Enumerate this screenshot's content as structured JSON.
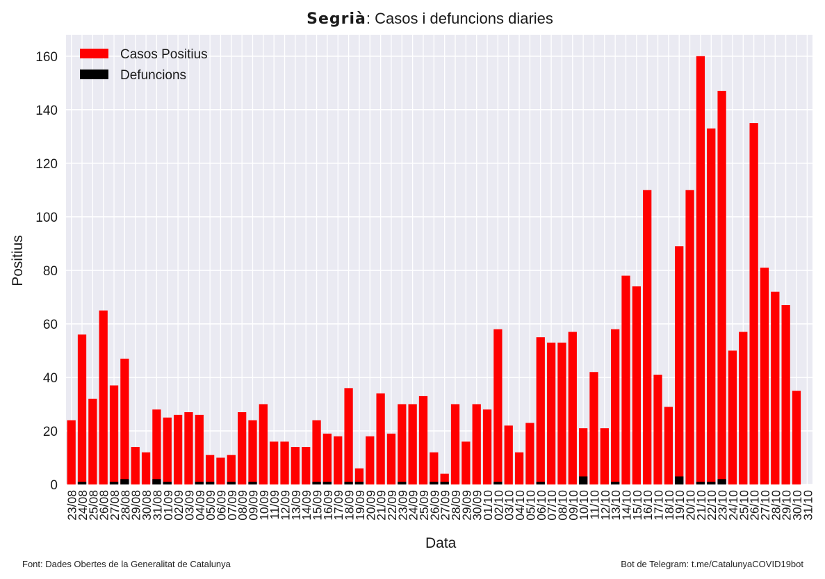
{
  "title_region": "Segrià",
  "title_rest": ": Casos i defuncions diaries",
  "footer_left": "Font: Dades Obertes de la Generalitat de Catalunya",
  "footer_right": "Bot de Telegram: t.me/CatalunyaCOVID19bot",
  "colors": {
    "cases": "#ff0000",
    "deaths": "#000000",
    "plot_bg": "#eaeaf2",
    "grid": "#ffffff"
  },
  "chart_data": {
    "type": "bar",
    "xlabel": "Data",
    "ylabel": "Positius",
    "ylim": [
      0,
      168
    ],
    "yticks": [
      0,
      20,
      40,
      60,
      80,
      100,
      120,
      140,
      160
    ],
    "grid": true,
    "legend_position": "top-left",
    "categories": [
      "23/08",
      "24/08",
      "25/08",
      "26/08",
      "27/08",
      "28/08",
      "29/08",
      "30/08",
      "31/08",
      "01/09",
      "02/09",
      "03/09",
      "04/09",
      "05/09",
      "06/09",
      "07/09",
      "08/09",
      "09/09",
      "10/09",
      "11/09",
      "12/09",
      "13/09",
      "14/09",
      "15/09",
      "16/09",
      "17/09",
      "18/09",
      "19/09",
      "20/09",
      "21/09",
      "22/09",
      "23/09",
      "24/09",
      "25/09",
      "26/09",
      "27/09",
      "28/09",
      "29/09",
      "30/09",
      "01/10",
      "02/10",
      "03/10",
      "04/10",
      "05/10",
      "06/10",
      "07/10",
      "08/10",
      "09/10",
      "10/10",
      "11/10",
      "12/10",
      "13/10",
      "14/10",
      "15/10",
      "16/10",
      "17/10",
      "18/10",
      "19/10",
      "20/10",
      "21/10",
      "22/10",
      "23/10",
      "24/10",
      "25/10",
      "26/10",
      "27/10",
      "28/10",
      "29/10",
      "30/10",
      "31/10"
    ],
    "series": [
      {
        "name": "Casos Positius",
        "values": [
          24,
          56,
          32,
          65,
          37,
          47,
          14,
          12,
          28,
          25,
          26,
          27,
          26,
          11,
          10,
          11,
          27,
          24,
          30,
          16,
          16,
          14,
          14,
          24,
          19,
          18,
          36,
          6,
          18,
          34,
          19,
          30,
          30,
          33,
          12,
          4,
          30,
          16,
          30,
          28,
          58,
          22,
          12,
          23,
          55,
          53,
          53,
          57,
          21,
          42,
          21,
          58,
          78,
          74,
          110,
          41,
          29,
          89,
          110,
          160,
          133,
          147,
          50,
          57,
          135,
          81,
          72,
          67,
          35,
          0
        ]
      },
      {
        "name": "Defuncions",
        "values": [
          0,
          1,
          0,
          0,
          1,
          2,
          0,
          0,
          2,
          1,
          0,
          0,
          1,
          1,
          0,
          1,
          0,
          1,
          0,
          0,
          0,
          0,
          0,
          1,
          1,
          0,
          1,
          1,
          0,
          0,
          0,
          1,
          0,
          0,
          1,
          1,
          0,
          0,
          0,
          0,
          1,
          0,
          0,
          0,
          1,
          0,
          0,
          0,
          3,
          0,
          0,
          1,
          0,
          0,
          0,
          0,
          0,
          3,
          0,
          1,
          1,
          2,
          0,
          0,
          0,
          0,
          0,
          0,
          0,
          0
        ]
      }
    ]
  }
}
